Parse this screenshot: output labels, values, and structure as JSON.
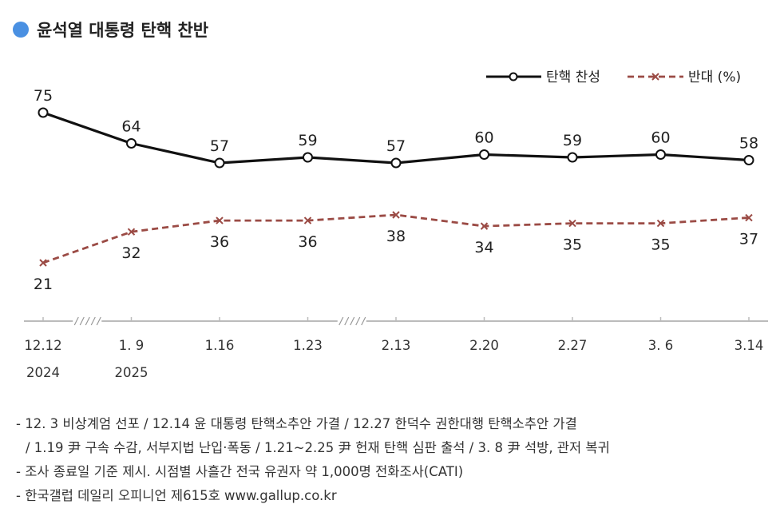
{
  "title": "윤석열 대통령 탄핵 찬반",
  "chart_data": {
    "type": "line",
    "categories": [
      "12.12",
      "1. 9",
      "1.16",
      "1.23",
      "2.13",
      "2.20",
      "2.27",
      "3. 6",
      "3.14"
    ],
    "year_labels": [
      {
        "category": "12.12",
        "label": "2024"
      },
      {
        "category": "1. 9",
        "label": "2025"
      }
    ],
    "series": [
      {
        "name": "탄핵 찬성",
        "values": [
          75,
          64,
          57,
          59,
          57,
          60,
          59,
          60,
          58
        ],
        "color": "#111111",
        "marker": "circle",
        "style": "solid"
      },
      {
        "name": "반대 (%)",
        "values": [
          21,
          32,
          36,
          36,
          38,
          34,
          35,
          35,
          37
        ],
        "color": "#9b4b45",
        "marker": "x",
        "style": "dashed"
      }
    ],
    "axis_breaks": [
      "12.12-1. 9",
      "1.23-2.13"
    ],
    "grid": false,
    "legend_position": "top-right"
  },
  "notes": [
    "- 12. 3 비상계엄 선포 / 12.14 윤 대통령 탄핵소추안 가결 / 12.27 한덕수 권한대행 탄핵소추안 가결",
    "/ 1.19 尹 구속 수감, 서부지법 난입·폭동 / 1.21~2.25 尹 헌재 탄핵 심판 출석 / 3. 8 尹 석방, 관저 복귀",
    "- 조사 종료일 기준 제시. 시점별 사흘간 전국 유권자 약 1,000명 전화조사(CATI)",
    "- 한국갤럽 데일리 오피니언 제615호 www.gallup.co.kr"
  ]
}
